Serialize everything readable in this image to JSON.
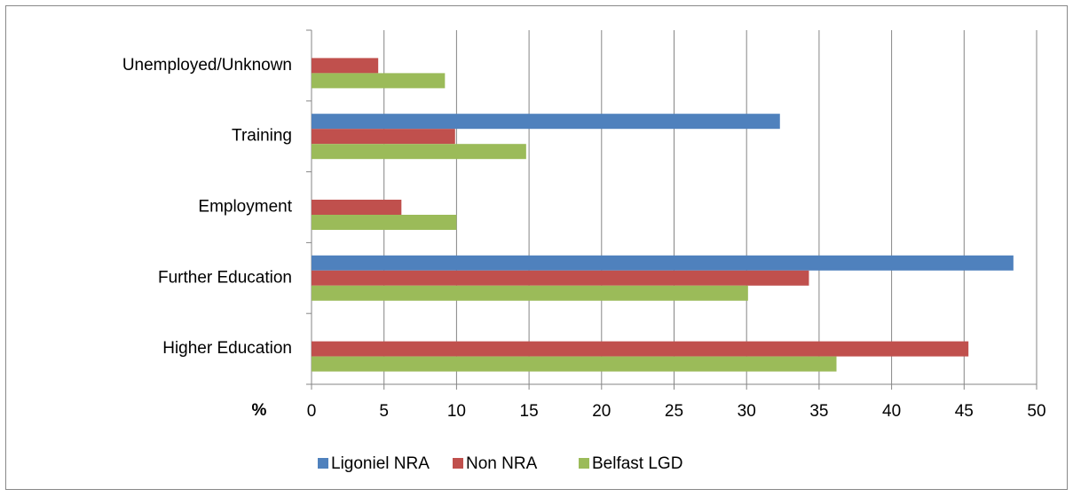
{
  "chart_data": {
    "type": "bar",
    "orientation": "horizontal",
    "categories": [
      "Higher Education",
      "Further Education",
      "Employment",
      "Training",
      "Unemployed/Unknown"
    ],
    "series": [
      {
        "name": "Ligoniel NRA",
        "color": "#4f81bd",
        "values": [
          0,
          48.4,
          0,
          32.3,
          0
        ]
      },
      {
        "name": "Non NRA",
        "color": "#c0504d",
        "values": [
          45.3,
          34.3,
          6.2,
          9.9,
          4.6
        ]
      },
      {
        "name": "Belfast LGD",
        "color": "#9bbb59",
        "values": [
          36.2,
          30.1,
          10.0,
          14.8,
          9.2
        ]
      }
    ],
    "x_label": "%",
    "xlim": [
      0,
      50
    ],
    "xticks": [
      0,
      5,
      10,
      15,
      20,
      25,
      30,
      35,
      40,
      45,
      50
    ],
    "grid": true,
    "legend": "bottom"
  }
}
